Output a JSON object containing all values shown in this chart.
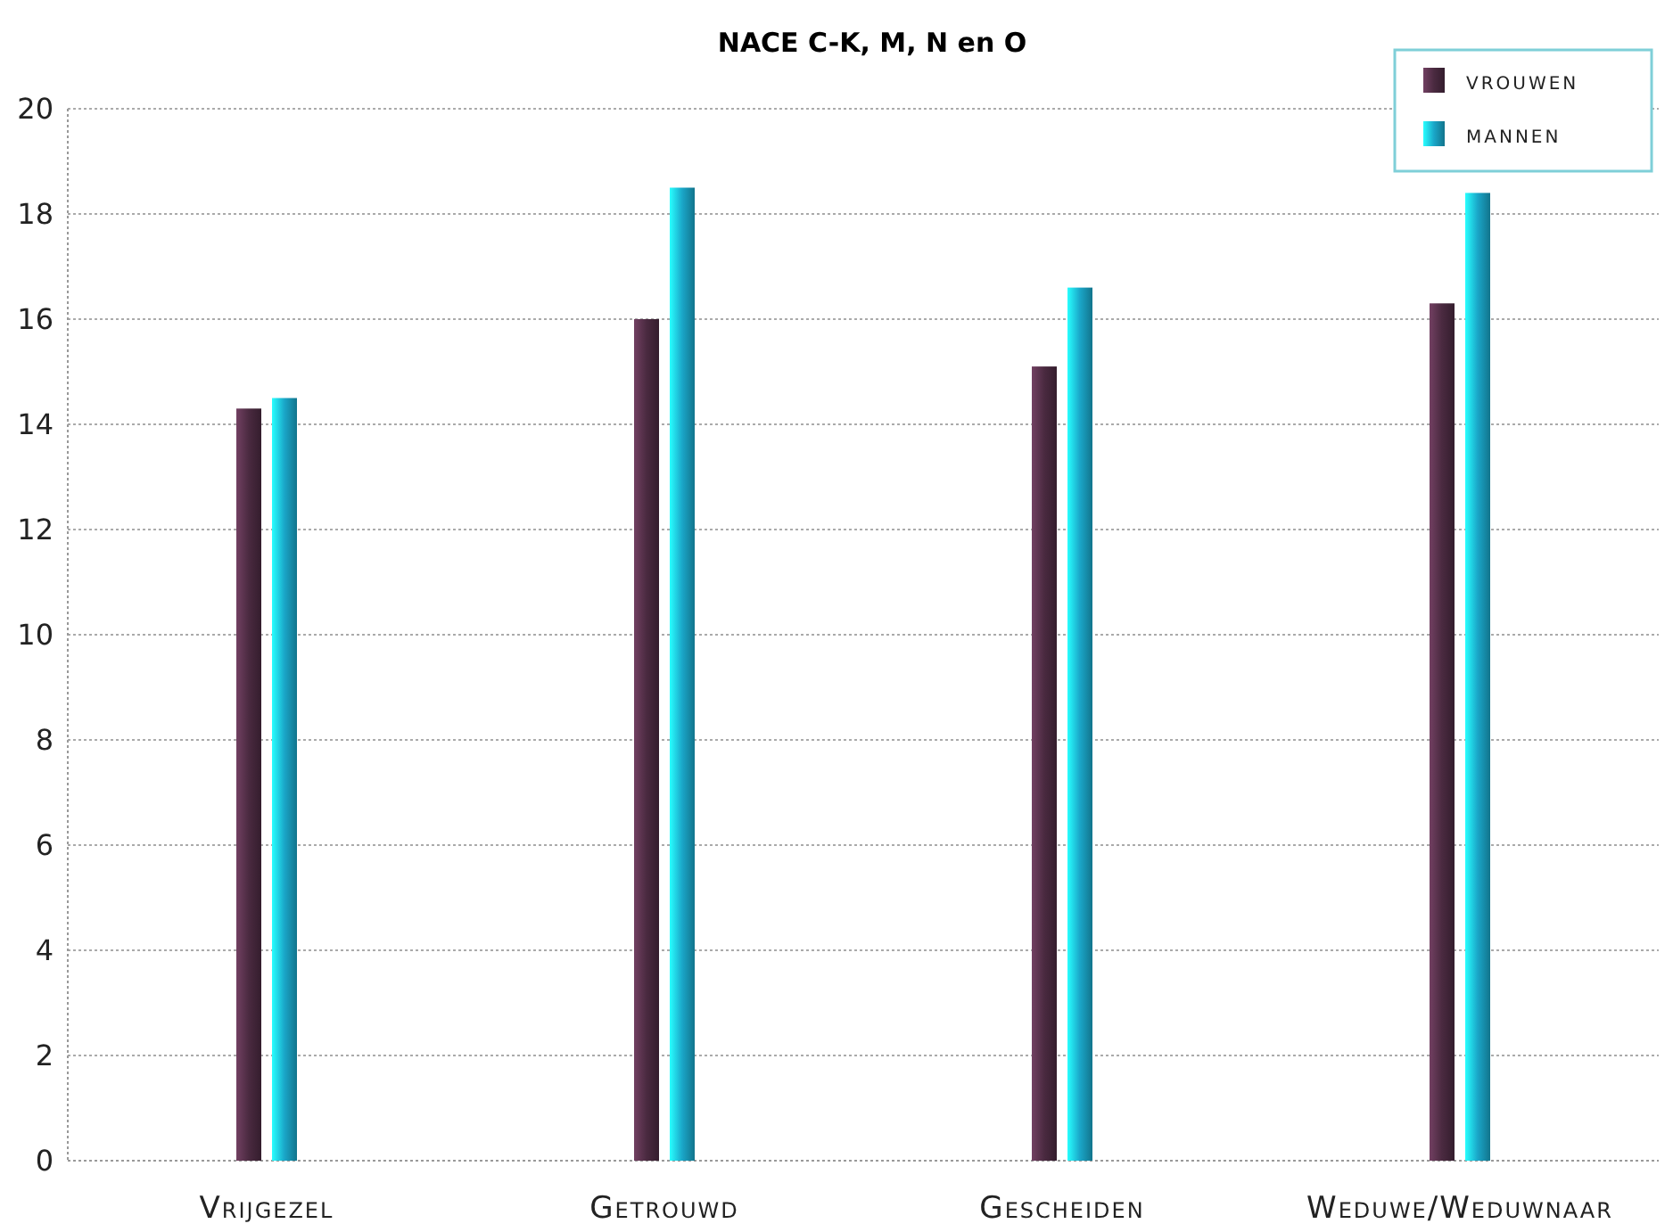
{
  "chart_data": {
    "type": "bar",
    "title": "NACE C-K, M, N en O",
    "categories": [
      "Vrijgezel",
      "Getrouwd",
      "Gescheiden",
      "Weduwe/Weduwnaar"
    ],
    "series": [
      {
        "name": "vrouwen",
        "color": "#4a2a40",
        "values": [
          14.3,
          16.0,
          15.1,
          16.3
        ]
      },
      {
        "name": "mannen",
        "color": "#1aa6c8",
        "values": [
          14.5,
          18.5,
          16.6,
          18.4
        ]
      }
    ],
    "ylim": [
      0,
      20
    ],
    "yticks": [
      0,
      2,
      4,
      6,
      8,
      10,
      12,
      14,
      16,
      18,
      20
    ],
    "grid": "y",
    "legend": "top right"
  }
}
